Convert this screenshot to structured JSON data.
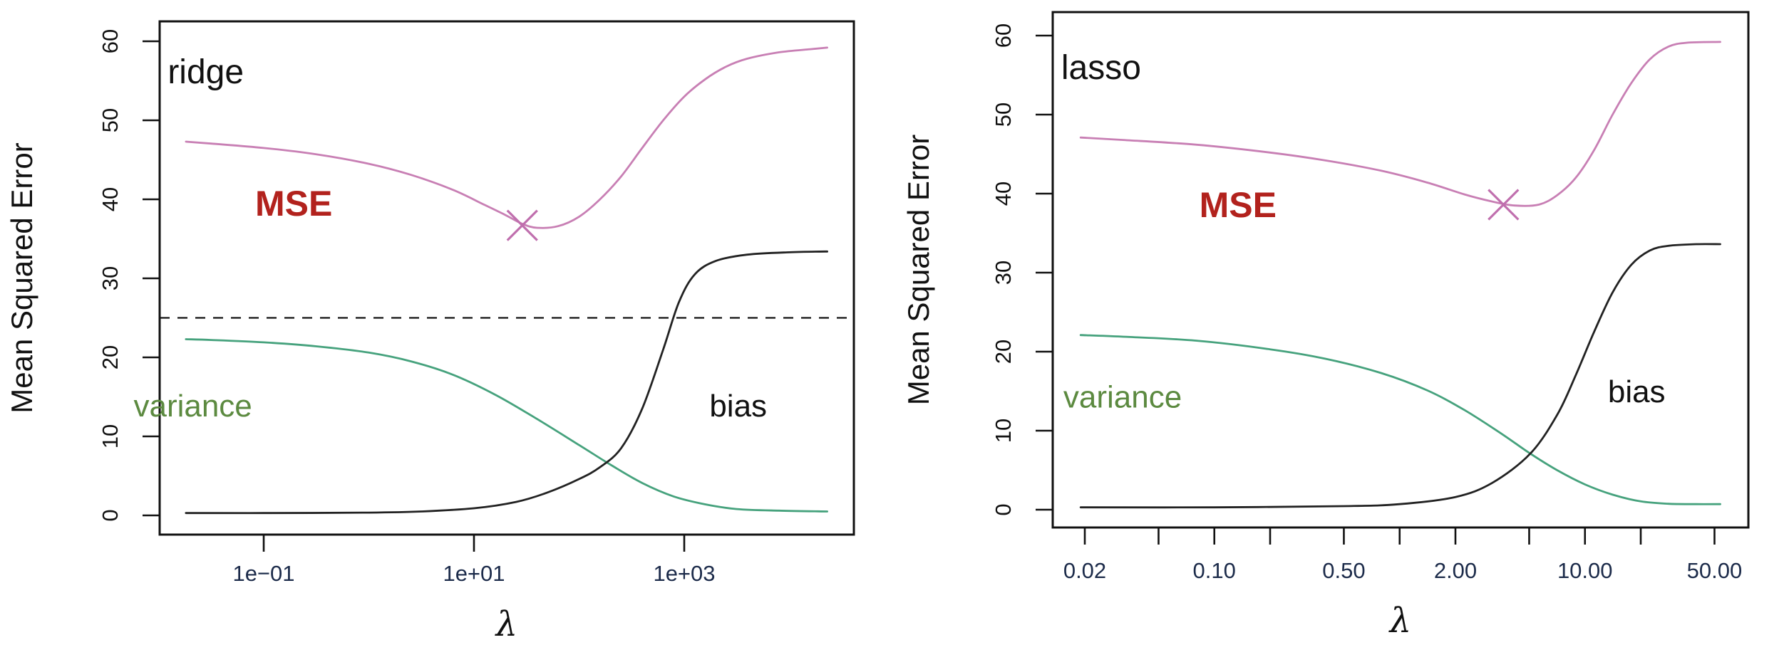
{
  "figure": {
    "description": "Bias-variance decomposition of mean squared error versus regularization parameter for ridge and lasso regression",
    "background": "#ffffff"
  },
  "chart_data": [
    {
      "id": "ridge",
      "type": "line",
      "x_scale": "log10",
      "panel_label": "ridge",
      "xlabel": "λ",
      "ylabel": "Mean Squared Error",
      "xlim": [
        0.01,
        41700
      ],
      "ylim": [
        0,
        60
      ],
      "grid": false,
      "y_ticks": [
        0,
        10,
        20,
        30,
        40,
        50,
        60
      ],
      "x_ticks": [
        {
          "value": 0.1,
          "label": "1e−01"
        },
        {
          "value": 10,
          "label": "1e+01"
        },
        {
          "value": 1000,
          "label": "1e+03"
        }
      ],
      "hline": {
        "y": 25,
        "style": "dashed",
        "color": "#111111"
      },
      "min_marker": {
        "lambda": 28.8,
        "mse": 36.7,
        "symbol": "x",
        "color": "#c06fae"
      },
      "series": [
        {
          "name": "MSE",
          "color": "#c87fb4",
          "points": [
            [
              0.0182,
              47.3
            ],
            [
              0.0316,
              47.05
            ],
            [
              0.1,
              46.5
            ],
            [
              0.316,
              45.7
            ],
            [
              1,
              44.5
            ],
            [
              2.51,
              43.1
            ],
            [
              6.31,
              41.2
            ],
            [
              12.6,
              39.3
            ],
            [
              20,
              38.0
            ],
            [
              28.8,
              36.9
            ],
            [
              39.8,
              36.4
            ],
            [
              63,
              36.6
            ],
            [
              100,
              37.8
            ],
            [
              158,
              40.0
            ],
            [
              251,
              42.9
            ],
            [
              398,
              46.5
            ],
            [
              631,
              50.0
            ],
            [
              1000,
              53.0
            ],
            [
              1585,
              55.2
            ],
            [
              2512,
              56.8
            ],
            [
              3981,
              57.8
            ],
            [
              7943,
              58.6
            ],
            [
              15850,
              59.0
            ],
            [
              22900,
              59.2
            ]
          ]
        },
        {
          "name": "variance",
          "color": "#46a27d",
          "points": [
            [
              0.0182,
              22.3
            ],
            [
              0.0316,
              22.2
            ],
            [
              0.1,
              21.9
            ],
            [
              0.316,
              21.4
            ],
            [
              1,
              20.6
            ],
            [
              2.51,
              19.5
            ],
            [
              6.31,
              17.8
            ],
            [
              15.8,
              15.3
            ],
            [
              39.8,
              12.2
            ],
            [
              100,
              8.9
            ],
            [
              200,
              6.4
            ],
            [
              398,
              4.1
            ],
            [
              794,
              2.4
            ],
            [
              1585,
              1.4
            ],
            [
              3162,
              0.8
            ],
            [
              7943,
              0.6
            ],
            [
              22900,
              0.5
            ]
          ]
        },
        {
          "name": "bias",
          "color": "#222222",
          "points": [
            [
              0.0182,
              0.3
            ],
            [
              0.1,
              0.3
            ],
            [
              1,
              0.35
            ],
            [
              3.16,
              0.5
            ],
            [
              10,
              0.9
            ],
            [
              25.1,
              1.7
            ],
            [
              50.1,
              2.9
            ],
            [
              100,
              4.6
            ],
            [
              158,
              6.1
            ],
            [
              251,
              8.5
            ],
            [
              398,
              13.5
            ],
            [
              631,
              21.0
            ],
            [
              891,
              27.0
            ],
            [
              1259,
              30.5
            ],
            [
              1995,
              32.2
            ],
            [
              3981,
              33.0
            ],
            [
              10000,
              33.3
            ],
            [
              22900,
              33.4
            ]
          ]
        }
      ],
      "annotations": [
        {
          "text": "ridge",
          "kind": "panel",
          "lambda": 0.0281,
          "y": 56.2,
          "color": "#111111"
        },
        {
          "text": "MSE",
          "kind": "mse",
          "lambda": 0.193,
          "y": 39.5,
          "color": "#b2221d"
        },
        {
          "text": "variance",
          "kind": "curve",
          "lambda": 0.0212,
          "y": 13.9,
          "color": "#5c8a40"
        },
        {
          "text": "bias",
          "kind": "curve",
          "lambda": 3260,
          "y": 13.9,
          "color": "#111111"
        }
      ]
    },
    {
      "id": "lasso",
      "type": "line",
      "x_scale": "log10",
      "panel_label": "lasso",
      "xlabel": "λ",
      "ylabel": "Mean Squared Error",
      "xlim": [
        0.0134,
        76
      ],
      "ylim": [
        0,
        60
      ],
      "grid": false,
      "y_ticks": [
        0,
        10,
        20,
        30,
        40,
        50,
        60
      ],
      "x_ticks": [
        {
          "value": 0.02,
          "label": "0.02"
        },
        {
          "value": 0.05,
          "label": ""
        },
        {
          "value": 0.1,
          "label": "0.10"
        },
        {
          "value": 0.2,
          "label": ""
        },
        {
          "value": 0.5,
          "label": "0.50"
        },
        {
          "value": 1,
          "label": ""
        },
        {
          "value": 2,
          "label": "2.00"
        },
        {
          "value": 5,
          "label": ""
        },
        {
          "value": 10,
          "label": "10.00"
        },
        {
          "value": 20,
          "label": ""
        },
        {
          "value": 50,
          "label": "50.00"
        }
      ],
      "hline": null,
      "min_marker": {
        "lambda": 3.63,
        "mse": 38.6,
        "symbol": "x",
        "color": "#c06fae"
      },
      "series": [
        {
          "name": "MSE",
          "color": "#c87fb4",
          "points": [
            [
              0.019,
              47.1
            ],
            [
              0.0316,
              46.8
            ],
            [
              0.0794,
              46.2
            ],
            [
              0.2,
              45.2
            ],
            [
              0.398,
              44.2
            ],
            [
              0.794,
              42.9
            ],
            [
              1.41,
              41.4
            ],
            [
              2.24,
              39.9
            ],
            [
              3.16,
              39.0
            ],
            [
              4.17,
              38.5
            ],
            [
              5.62,
              38.6
            ],
            [
              7.08,
              39.8
            ],
            [
              8.91,
              42.0
            ],
            [
              11.2,
              45.5
            ],
            [
              14.1,
              50.0
            ],
            [
              17.8,
              54.0
            ],
            [
              22.4,
              57.0
            ],
            [
              28.2,
              58.6
            ],
            [
              35.5,
              59.1
            ],
            [
              53.7,
              59.2
            ]
          ]
        },
        {
          "name": "variance",
          "color": "#46a27d",
          "points": [
            [
              0.019,
              22.1
            ],
            [
              0.0316,
              21.9
            ],
            [
              0.0794,
              21.4
            ],
            [
              0.2,
              20.3
            ],
            [
              0.398,
              19.1
            ],
            [
              0.794,
              17.3
            ],
            [
              1.41,
              15.1
            ],
            [
              2.24,
              12.6
            ],
            [
              3.55,
              9.6
            ],
            [
              5.07,
              7.1
            ],
            [
              7.08,
              5.0
            ],
            [
              10,
              3.2
            ],
            [
              14.1,
              1.9
            ],
            [
              20,
              1.05
            ],
            [
              28.2,
              0.75
            ],
            [
              39.8,
              0.7
            ],
            [
              53.7,
              0.7
            ]
          ]
        },
        {
          "name": "bias",
          "color": "#222222",
          "points": [
            [
              0.019,
              0.3
            ],
            [
              0.1,
              0.3
            ],
            [
              0.5,
              0.45
            ],
            [
              1,
              0.7
            ],
            [
              2,
              1.6
            ],
            [
              3.16,
              3.4
            ],
            [
              5.07,
              7.1
            ],
            [
              7.08,
              12.0
            ],
            [
              8.91,
              17.0
            ],
            [
              11.2,
              22.5
            ],
            [
              14.1,
              27.5
            ],
            [
              17.8,
              31.0
            ],
            [
              22.4,
              32.8
            ],
            [
              28.2,
              33.4
            ],
            [
              39.8,
              33.6
            ],
            [
              53.7,
              33.6
            ]
          ]
        }
      ],
      "annotations": [
        {
          "text": "lasso",
          "kind": "panel",
          "lambda": 0.0245,
          "y": 56.0,
          "color": "#111111"
        },
        {
          "text": "MSE",
          "kind": "mse",
          "lambda": 0.134,
          "y": 38.6,
          "color": "#b2221d"
        },
        {
          "text": "variance",
          "kind": "curve",
          "lambda": 0.032,
          "y": 14.3,
          "color": "#5c8a40"
        },
        {
          "text": "bias",
          "kind": "curve",
          "lambda": 19.0,
          "y": 15.0,
          "color": "#111111"
        }
      ]
    }
  ],
  "style_colors": {
    "axis": "#111111",
    "y_tick_label": "#111111",
    "x_tick_label": "#1c2b4a"
  }
}
